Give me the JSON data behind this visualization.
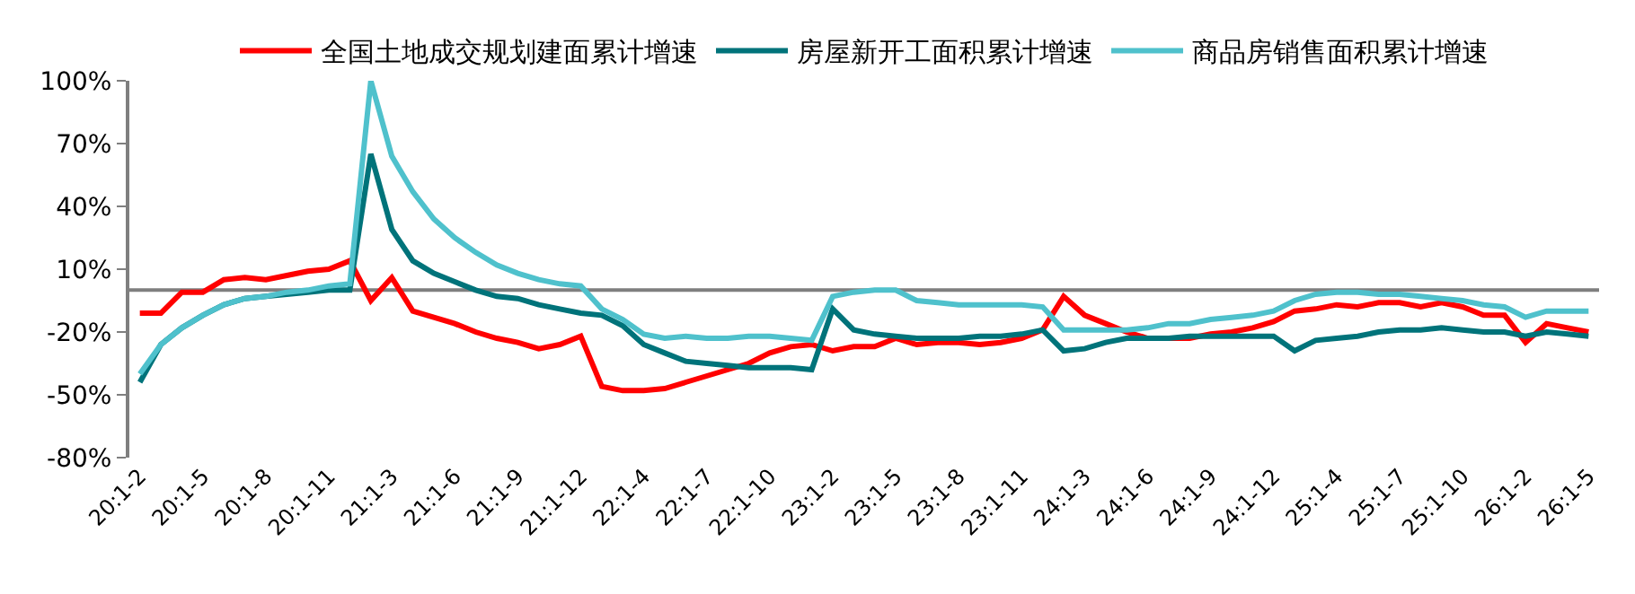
{
  "chart_data": {
    "type": "line",
    "categories": [
      "20:1-2",
      null,
      null,
      "20:1-5",
      null,
      null,
      "20:1-8",
      null,
      null,
      "20:1-11",
      null,
      null,
      "21:1-3",
      null,
      null,
      "21:1-6",
      null,
      null,
      "21:1-9",
      null,
      null,
      "21:1-12",
      null,
      null,
      "22:1-4",
      null,
      null,
      "22:1-7",
      null,
      null,
      "22:1-10",
      null,
      null,
      "23:1-2",
      null,
      null,
      "23:1-5",
      null,
      null,
      "23:1-8",
      null,
      null,
      "23:1-11",
      null,
      null,
      "24:1-3",
      null,
      null,
      "24:1-6",
      null,
      null,
      "24:1-9",
      null,
      null,
      "24:1-12",
      null,
      null,
      "25:1-4",
      null,
      null,
      "25:1-7",
      null,
      null,
      "25:1-10",
      null,
      null,
      "26:1-2",
      null,
      null,
      "26:1-5"
    ],
    "series": [
      {
        "name": "全国土地成交规划建面累计增速",
        "color": "#ff0000",
        "values": [
          -11,
          -11,
          -1,
          -1,
          5,
          6,
          5,
          7,
          9,
          10,
          14,
          -5,
          6,
          -10,
          -13,
          -16,
          -20,
          -23,
          -25,
          -28,
          -26,
          -22,
          -46,
          -48,
          -48,
          -47,
          -44,
          -41,
          -38,
          -35,
          -30,
          -27,
          -26,
          -29,
          -27,
          -27,
          -23,
          -26,
          -25,
          -25,
          -26,
          -25,
          -23,
          -19,
          -3,
          -12,
          -16,
          -20,
          -23,
          -23,
          -23,
          -21,
          -20,
          -18,
          -15,
          -10,
          -9,
          -7,
          -8,
          -6,
          -6,
          -8,
          -6,
          -8,
          -12,
          -12,
          -25,
          -16,
          -18,
          -20
        ]
      },
      {
        "name": "房屋新开工面积累计增速",
        "color": "#00737a",
        "values": [
          -44,
          -26,
          -18,
          -12,
          -7,
          -4,
          -3,
          -2,
          -1,
          0,
          0,
          65,
          29,
          14,
          8,
          4,
          0,
          -3,
          -4,
          -7,
          -9,
          -11,
          -12,
          -17,
          -26,
          -30,
          -34,
          -35,
          -36,
          -37,
          -37,
          -37,
          -38,
          -9,
          -19,
          -21,
          -22,
          -23,
          -23,
          -23,
          -22,
          -22,
          -21,
          -19,
          -29,
          -28,
          -25,
          -23,
          -23,
          -23,
          -22,
          -22,
          -22,
          -22,
          -22,
          -29,
          -24,
          -23,
          -22,
          -20,
          -19,
          -19,
          -18,
          -19,
          -20,
          -20,
          -22,
          -20,
          -21,
          -22
        ]
      },
      {
        "name": "商品房销售面积累计增速",
        "color": "#4fc1cc",
        "values": [
          -40,
          -26,
          -18,
          -12,
          -7,
          -4,
          -3,
          -1,
          0,
          2,
          3,
          100,
          64,
          47,
          34,
          25,
          18,
          12,
          8,
          5,
          3,
          2,
          -9,
          -14,
          -21,
          -23,
          -22,
          -23,
          -23,
          -22,
          -22,
          -23,
          -24,
          -3,
          -1,
          0,
          0,
          -5,
          -6,
          -7,
          -7,
          -7,
          -7,
          -8,
          -19,
          -19,
          -19,
          -19,
          -18,
          -16,
          -16,
          -14,
          -13,
          -12,
          -10,
          -5,
          -2,
          -1,
          -1,
          -2,
          -2,
          -3,
          -4,
          -5,
          -7,
          -8,
          -13,
          -10,
          -10,
          -10
        ]
      }
    ],
    "ylim": [
      -80,
      100
    ],
    "yticks": [
      {
        "value": -80,
        "label": "-80%"
      },
      {
        "value": -50,
        "label": "-50%"
      },
      {
        "value": -20,
        "label": "-20%"
      },
      {
        "value": 10,
        "label": "10%"
      },
      {
        "value": 40,
        "label": "40%"
      },
      {
        "value": 70,
        "label": "70%"
      },
      {
        "value": 100,
        "label": "100%"
      }
    ],
    "ref_lines": [
      {
        "axis": "y",
        "value": 0,
        "color": "#7f7f7f"
      }
    ],
    "grid": false,
    "legend": "top",
    "marker": "none",
    "line_style": "solid"
  }
}
